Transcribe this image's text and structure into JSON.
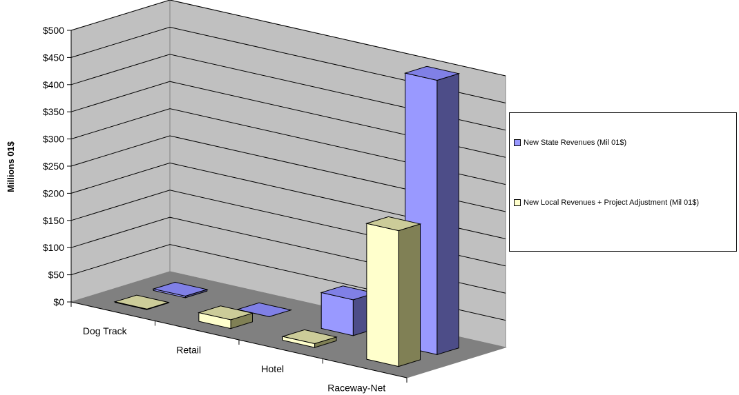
{
  "chart_data": {
    "type": "bar",
    "style": "3d-clustered-column",
    "categories": [
      "Dog Track",
      "Retail",
      "Hotel",
      "Raceway-Net"
    ],
    "series": [
      {
        "name": "New State Revenues (Mil 01$)",
        "values": [
          3,
          0,
          66,
          505
        ],
        "color": "#9999ff"
      },
      {
        "name": "New Local Revenues + Project Adjustment (Mil 01$)",
        "values": [
          1,
          16,
          7,
          250
        ],
        "color": "#ffffcc"
      }
    ],
    "ylabel": "Millions 01$",
    "ylim": [
      0,
      500
    ],
    "y_ticks": [
      "$0",
      "$50",
      "$100",
      "$150",
      "$200",
      "$250",
      "$300",
      "$350",
      "$400",
      "$450",
      "$500"
    ],
    "grid": true,
    "legend_position": "right",
    "colors": {
      "back_wall": "#c0c0c0",
      "floor": "#808080",
      "gridline": "#000000"
    }
  }
}
